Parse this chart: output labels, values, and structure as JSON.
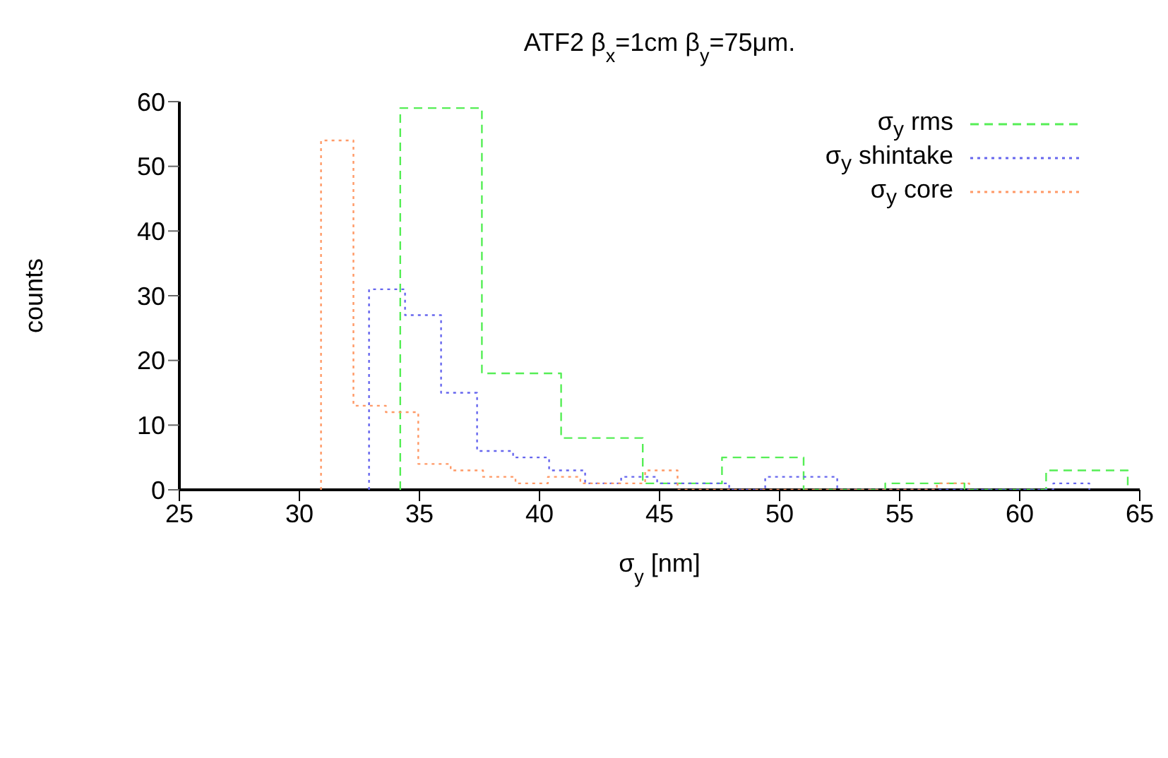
{
  "chart_data": {
    "type": "step",
    "title": "ATF2 β$_{x}$=1cm  β$_{y}$=75μm.",
    "xlabel": "σ$_{y}$ [nm]",
    "ylabel": "counts",
    "xlim": [
      25,
      65
    ],
    "xticks": [
      25,
      30,
      35,
      40,
      45,
      50,
      55,
      60,
      65
    ],
    "ylim": [
      0,
      60
    ],
    "yticks": [
      0,
      10,
      20,
      30,
      40,
      50,
      60
    ],
    "grid": false,
    "legend": "top right",
    "series": [
      {
        "name": "σ$_{y}$ rms",
        "color": "#55ee55",
        "line_style": "dashed",
        "x": [
          34.2,
          34.2,
          37.6,
          40.9,
          44.3,
          47.6,
          51.0,
          54.4,
          57.7,
          61.1,
          64.5
        ],
        "values": [
          0,
          59,
          18,
          8,
          1,
          5,
          0,
          1,
          0,
          3,
          0
        ]
      },
      {
        "name": "σ$_{y}$ shintake",
        "color": "#6666ee",
        "line_style": "dotted",
        "x": [
          32.9,
          32.9,
          34.4,
          35.9,
          37.4,
          38.9,
          40.4,
          41.9,
          43.4,
          44.9,
          46.4,
          47.9,
          49.4,
          50.9,
          52.4,
          53.9,
          55.4,
          56.9,
          58.4,
          59.9,
          61.4,
          62.9
        ],
        "values": [
          0,
          31,
          27,
          15,
          6,
          5,
          3,
          1,
          2,
          1,
          1,
          0,
          2,
          2,
          0,
          0,
          0,
          0,
          0,
          0,
          1,
          0
        ]
      },
      {
        "name": "σ$_{y}$ core",
        "color": "#ff9966",
        "line_style": "dotted",
        "x": [
          30.9,
          30.9,
          32.25,
          33.6,
          34.95,
          36.3,
          37.65,
          39.0,
          40.35,
          41.7,
          43.05,
          44.4,
          45.75,
          47.1,
          48.45,
          49.8,
          51.15,
          52.5,
          53.85,
          55.2,
          56.55,
          57.9
        ],
        "values": [
          0,
          54,
          13,
          12,
          4,
          3,
          2,
          1,
          2,
          1,
          1,
          3,
          0,
          0,
          0,
          0,
          0,
          0,
          0,
          0,
          1,
          0
        ]
      }
    ]
  }
}
